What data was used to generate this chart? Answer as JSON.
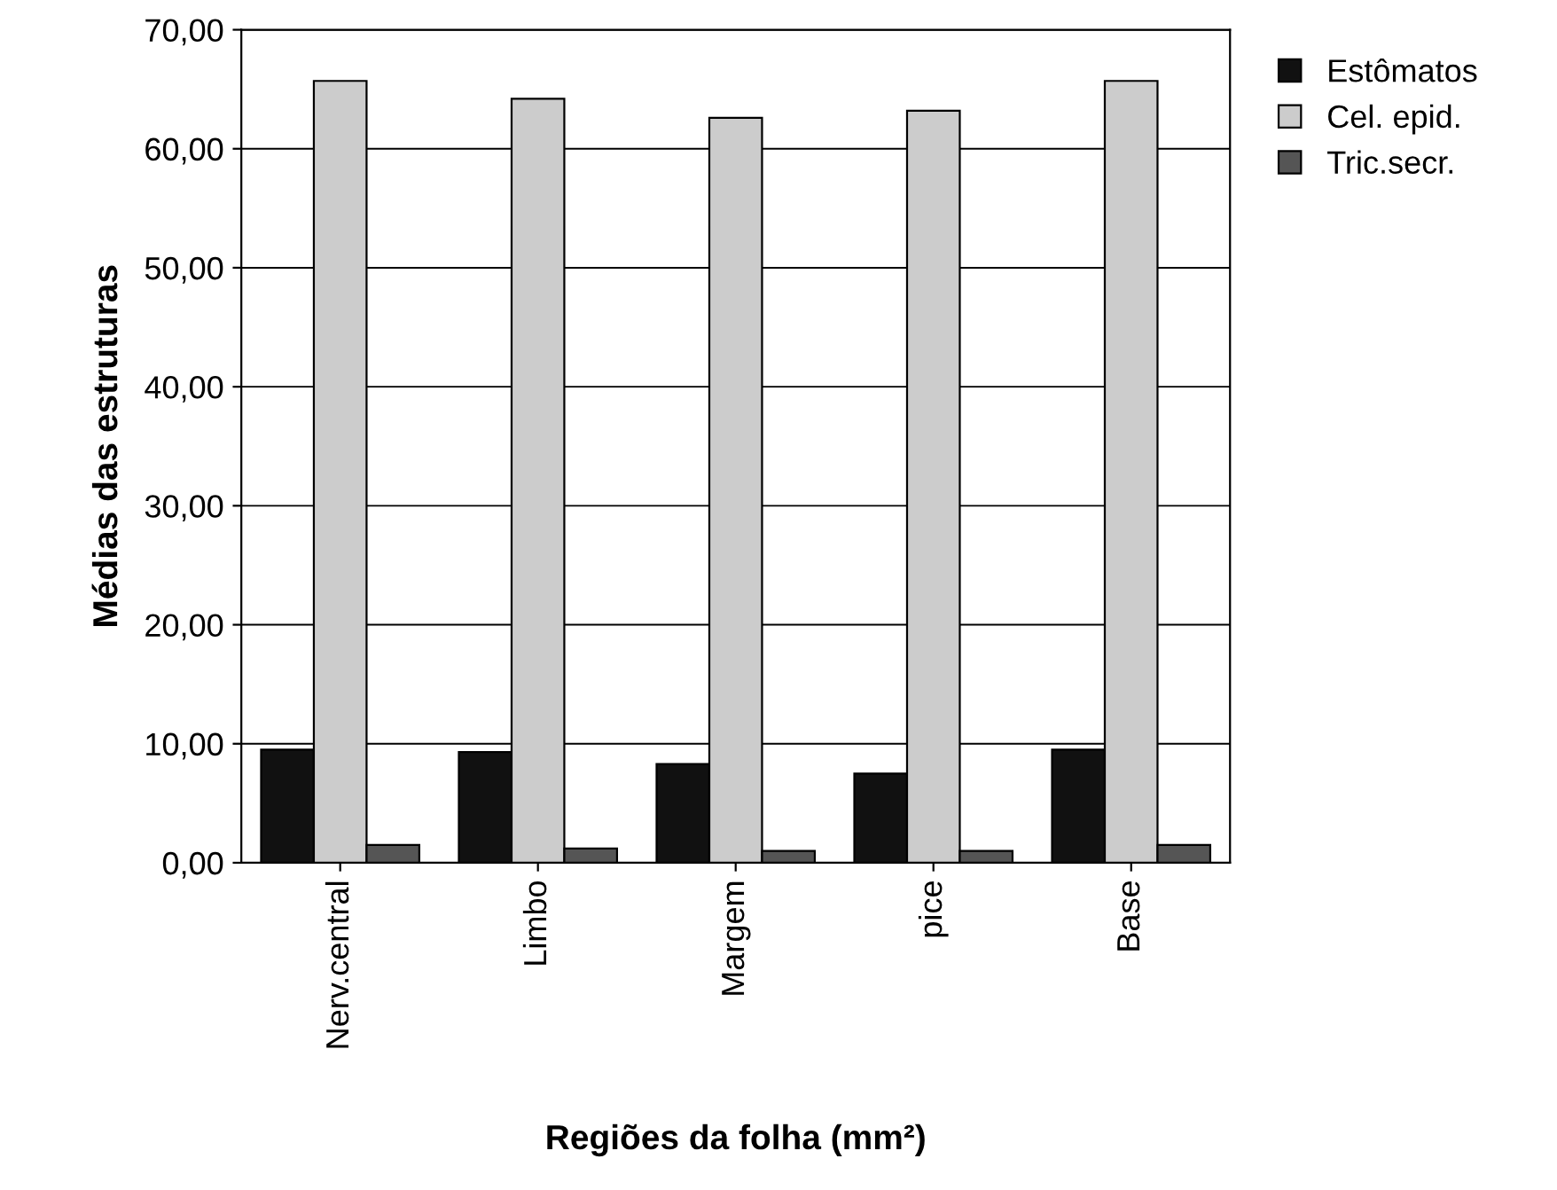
{
  "chart_data": {
    "type": "bar",
    "xlabel": "Regiões da folha (mm²)",
    "ylabel": "Médias das estruturas",
    "categories": [
      "Nerv.central",
      "Limbo",
      "Margem",
      "pice",
      "Base"
    ],
    "series": [
      {
        "name": "Estômatos",
        "color": "#111111",
        "values": [
          9.5,
          9.3,
          8.3,
          7.5,
          9.5
        ]
      },
      {
        "name": "Cel. epid.",
        "color": "#cccccc",
        "values": [
          65.7,
          64.2,
          62.6,
          63.2,
          65.7
        ]
      },
      {
        "name": "Tric.secr.",
        "color": "#555555",
        "values": [
          1.5,
          1.2,
          1.0,
          1.0,
          1.5
        ]
      }
    ],
    "ylim": [
      0,
      70
    ],
    "yticks": [
      {
        "value": 0,
        "label": "0,00"
      },
      {
        "value": 10,
        "label": "10,00"
      },
      {
        "value": 20,
        "label": "20,00"
      },
      {
        "value": 30,
        "label": "30,00"
      },
      {
        "value": 40,
        "label": "40,00"
      },
      {
        "value": 50,
        "label": "50,00"
      },
      {
        "value": 60,
        "label": "60,00"
      },
      {
        "value": 70,
        "label": "70,00"
      }
    ],
    "grid": "y",
    "legend": "top right"
  }
}
